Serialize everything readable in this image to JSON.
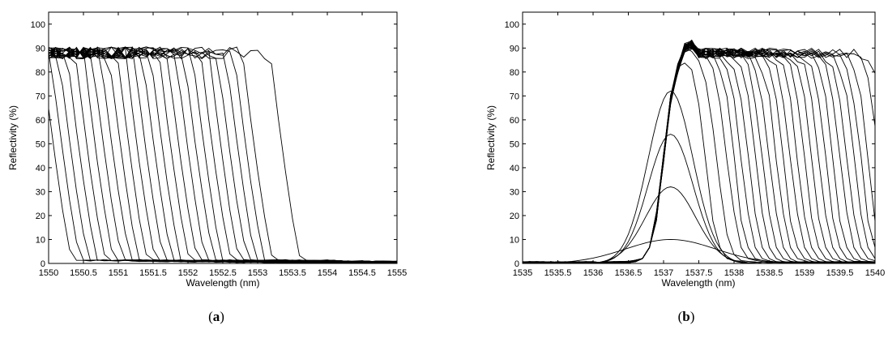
{
  "chart_data": [
    {
      "panel": "(a)",
      "panel_letter": "a",
      "type": "line",
      "xlabel": "Wavelength (nm)",
      "ylabel": "Reflectivity (%)",
      "xlim": [
        1550,
        1555
      ],
      "ylim": [
        0,
        105
      ],
      "xticks": [
        1550,
        1550.5,
        1551,
        1551.5,
        1552,
        1552.5,
        1553,
        1553.5,
        1554,
        1554.5,
        1555
      ],
      "xtick_labels": [
        "1550",
        "1550.5",
        "1551",
        "1551.5",
        "1552",
        "1552.5",
        "1553",
        "1553.5",
        "1554",
        "1554.5",
        "1555"
      ],
      "yticks": [
        0,
        10,
        20,
        30,
        40,
        50,
        60,
        70,
        80,
        90,
        100
      ],
      "ytick_labels": [
        "0",
        "10",
        "20",
        "30",
        "40",
        "50",
        "60",
        "70",
        "80",
        "90",
        "100"
      ],
      "grid": false,
      "line_color": "#000000",
      "series_description": "family of reflection spectra; each flat at ~88% then falling steeply to ~0 at a progressively longer edge wavelength",
      "edges": [
        1549.9,
        1550.02,
        1550.14,
        1550.26,
        1550.38,
        1550.5,
        1550.62,
        1550.74,
        1550.86,
        1550.98,
        1551.1,
        1551.22,
        1551.34,
        1551.46,
        1551.58,
        1551.7,
        1551.82,
        1551.94,
        1552.06,
        1552.18,
        1552.3,
        1552.42,
        1552.54,
        1552.66,
        1552.78,
        1553.18
      ],
      "plateau_level": 88,
      "drop_width_nm": 0.45,
      "x_start": 1550
    },
    {
      "panel": "(b)",
      "panel_letter": "b",
      "type": "line",
      "xlabel": "Wavelength (nm)",
      "ylabel": "Reflectivity (%)",
      "xlim": [
        1535,
        1540
      ],
      "ylim": [
        0,
        105
      ],
      "xticks": [
        1535,
        1535.5,
        1536,
        1536.5,
        1537,
        1537.5,
        1538,
        1538.5,
        1539,
        1539.5,
        1540
      ],
      "xtick_labels": [
        "1535",
        "1535.5",
        "1536",
        "1536.5",
        "1537",
        "1537.5",
        "1538",
        "1538.5",
        "1539",
        "1539.5",
        "1540"
      ],
      "yticks": [
        0,
        10,
        20,
        30,
        40,
        50,
        60,
        70,
        80,
        90,
        100
      ],
      "ytick_labels": [
        "0",
        "10",
        "20",
        "30",
        "40",
        "50",
        "60",
        "70",
        "80",
        "90",
        "100"
      ],
      "grid": false,
      "line_color": "#000000",
      "series_description": "reflection spectra sharing a rising edge near 1537 nm; low-reflectivity peaks (~10, 32, 54, 72%) and saturated curves at ~88% with falling edges from 1537.5 to beyond 1540 nm",
      "rise_center": 1537.0,
      "plateau_level": 88,
      "peak_heights": [
        10,
        32,
        54,
        72
      ],
      "peak_center": 1537.1,
      "peak_widths": [
        0.9,
        0.5,
        0.45,
        0.45
      ],
      "saturated_edges": [
        1537.6,
        1537.75,
        1537.9,
        1538.0,
        1538.1,
        1538.2,
        1538.3,
        1538.4,
        1538.5,
        1538.6,
        1538.7,
        1538.8,
        1538.9,
        1539.0,
        1539.1,
        1539.2,
        1539.3,
        1539.4,
        1539.5,
        1539.6,
        1539.7,
        1539.8,
        1539.9,
        1540.05,
        1540.2
      ]
    }
  ]
}
